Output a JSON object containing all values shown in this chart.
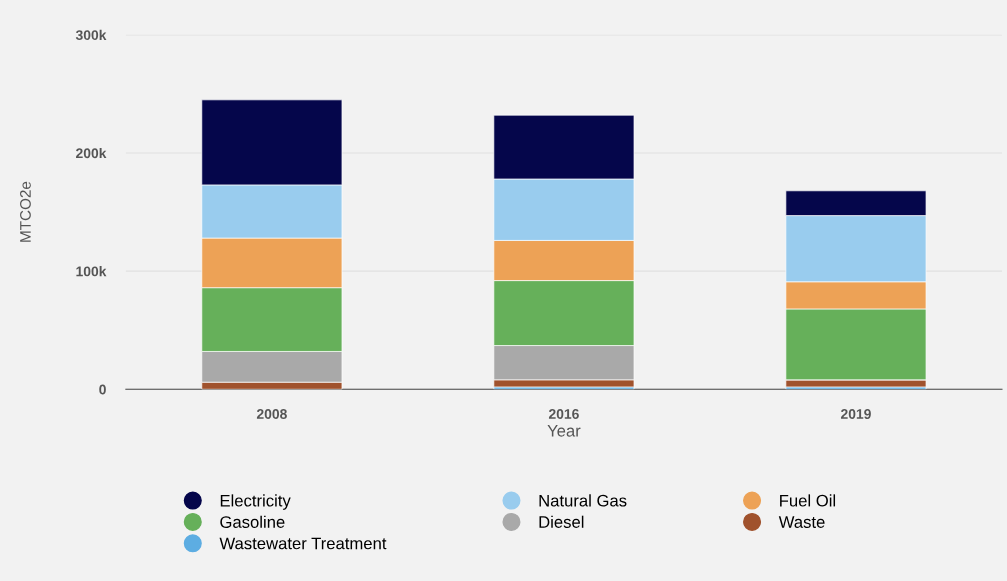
{
  "chart_data": {
    "type": "bar",
    "stacked": true,
    "xlabel": "Year",
    "ylabel": "MTCO2e",
    "categories": [
      "2008",
      "2016",
      "2019"
    ],
    "series": [
      {
        "name": "Wastewater Treatment",
        "color": "#5dade2",
        "values": [
          null,
          2000,
          2000
        ]
      },
      {
        "name": "Waste",
        "color": "#a0522d",
        "values": [
          6000,
          6000,
          6000
        ]
      },
      {
        "name": "Diesel",
        "color": "#a9a9a9",
        "values": [
          26000,
          29000,
          null
        ]
      },
      {
        "name": "Gasoline",
        "color": "#66b05a",
        "values": [
          54000,
          55000,
          60000
        ]
      },
      {
        "name": "Fuel Oil",
        "color": "#eda256",
        "values": [
          42000,
          34000,
          23000
        ]
      },
      {
        "name": "Natural Gas",
        "color": "#99ccee",
        "values": [
          45000,
          52000,
          56000
        ]
      },
      {
        "name": "Electricity",
        "color": "#05064b",
        "values": [
          72000,
          54000,
          21000
        ]
      }
    ],
    "ylim": [
      0,
      300000
    ],
    "yticks": [
      {
        "value": 0,
        "label": "0"
      },
      {
        "value": 100000,
        "label": "100k"
      },
      {
        "value": 200000,
        "label": "200k"
      },
      {
        "value": 300000,
        "label": "300k"
      }
    ],
    "grid": "y",
    "legend": "bottom"
  }
}
